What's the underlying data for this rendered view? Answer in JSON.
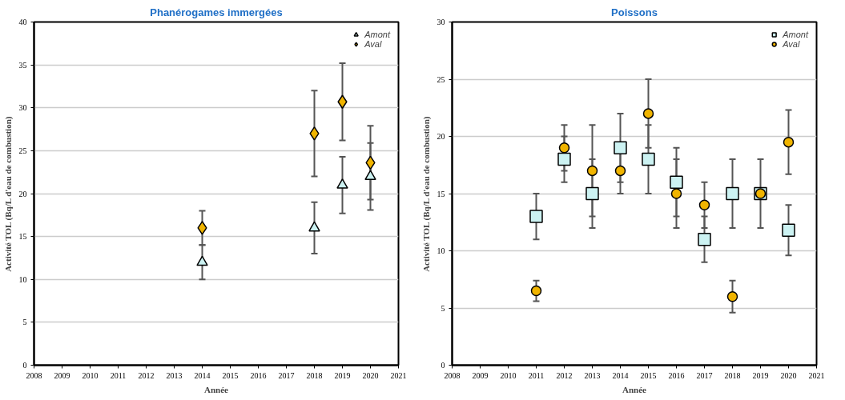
{
  "chart_data": [
    {
      "type": "scatter",
      "title": "Phanérogames immergées",
      "xlabel": "Année",
      "ylabel": "Activité TOL (Bq/L d'eau de combustion)",
      "xlim": [
        2008,
        2021
      ],
      "xticks": [
        2008,
        2009,
        2010,
        2011,
        2012,
        2013,
        2014,
        2015,
        2016,
        2017,
        2018,
        2019,
        2020,
        2021
      ],
      "ylim": [
        0,
        40
      ],
      "yticks": [
        0,
        5,
        10,
        15,
        20,
        25,
        30,
        35,
        40
      ],
      "grid": "y",
      "legend": "top right",
      "series": [
        {
          "name": "Amont",
          "color": "#ccf2f2",
          "marker": "triangle",
          "x": [
            2014,
            2018,
            2019,
            2020
          ],
          "values": [
            12,
            16,
            21,
            22
          ],
          "errors": [
            2,
            3,
            3.3,
            3.9
          ]
        },
        {
          "name": "Aval",
          "color": "#f0b400",
          "marker": "diamond",
          "x": [
            2014,
            2018,
            2019,
            2020
          ],
          "values": [
            16,
            27,
            30.7,
            23.6
          ],
          "errors": [
            2,
            5,
            4.5,
            4.3
          ]
        }
      ]
    },
    {
      "type": "scatter",
      "title": "Poissons",
      "xlabel": "Année",
      "ylabel": "Activité TOL (Bq/L d'eau de combustion)",
      "xlim": [
        2008,
        2021
      ],
      "xticks": [
        2008,
        2009,
        2010,
        2011,
        2012,
        2013,
        2014,
        2015,
        2016,
        2017,
        2018,
        2019,
        2020,
        2021
      ],
      "ylim": [
        0,
        30
      ],
      "yticks": [
        0,
        5,
        10,
        15,
        20,
        25,
        30
      ],
      "grid": "y",
      "legend": "top right",
      "series": [
        {
          "name": "Amont",
          "color": "#ccf2f2",
          "marker": "square",
          "x": [
            2011,
            2012,
            2013,
            2014,
            2015,
            2016,
            2017,
            2018,
            2019,
            2020
          ],
          "values": [
            13,
            18,
            15,
            19,
            18,
            16,
            11,
            15,
            15,
            11.8
          ],
          "errors": [
            2,
            2,
            3,
            3,
            3,
            3,
            2,
            3,
            3,
            2.2
          ]
        },
        {
          "name": "Aval",
          "color": "#f0b400",
          "marker": "circle",
          "x": [
            2011,
            2012,
            2013,
            2014,
            2015,
            2016,
            2017,
            2018,
            2019,
            2020
          ],
          "values": [
            6.5,
            19,
            17,
            17,
            22,
            15,
            14,
            6,
            15,
            19.5
          ],
          "errors": [
            0.9,
            2,
            4,
            2,
            3,
            3,
            2,
            1.4,
            3,
            2.8
          ]
        }
      ]
    }
  ]
}
